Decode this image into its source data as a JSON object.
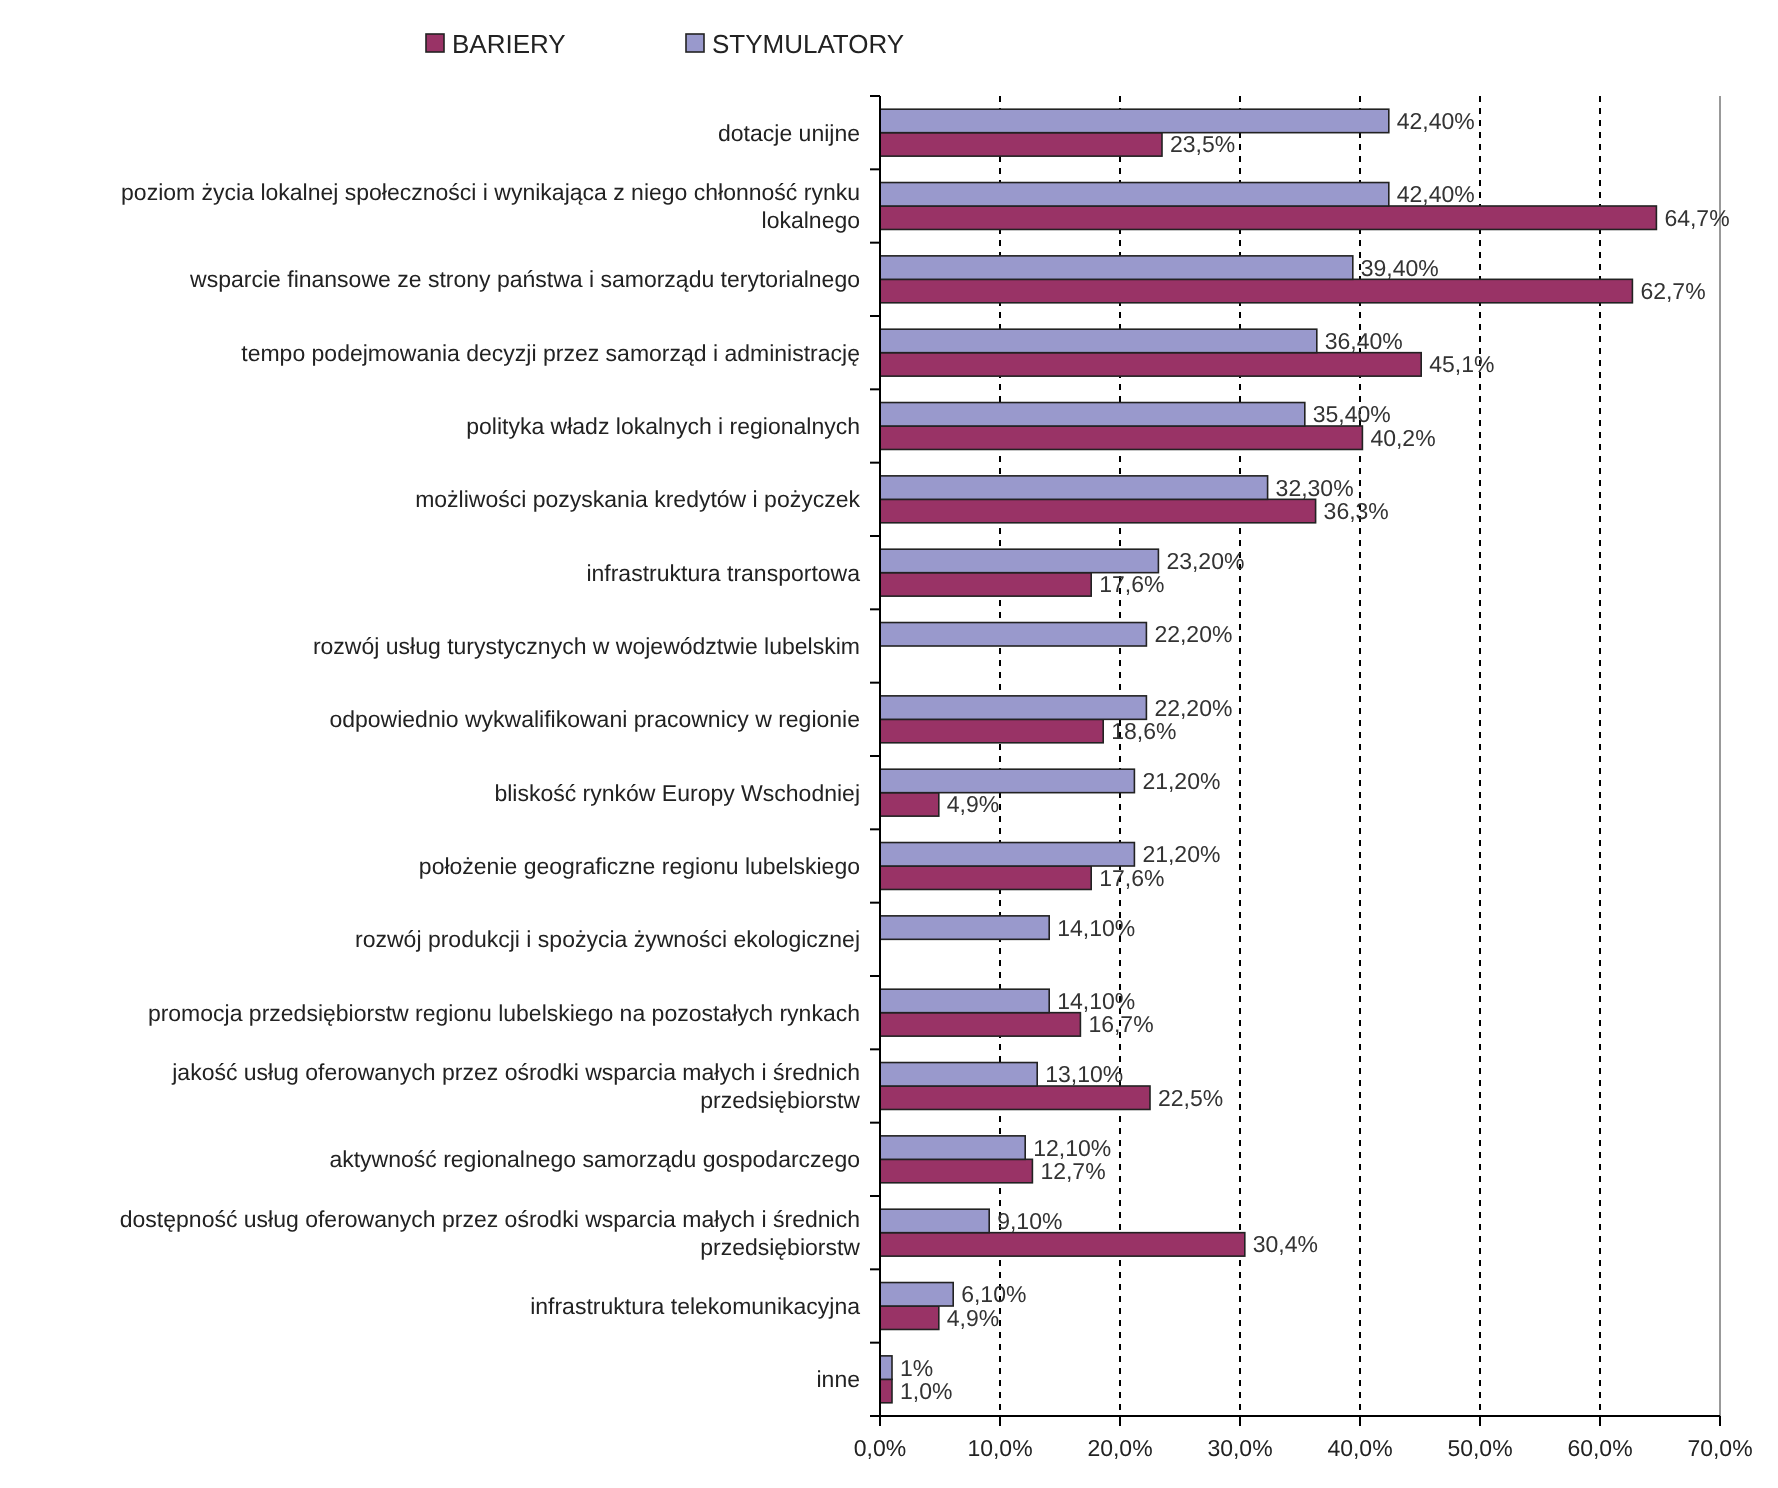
{
  "chart_data": {
    "type": "bar",
    "orientation": "horizontal",
    "categories": [
      "dotacje unijne",
      "poziom życia lokalnej społeczności i wynikająca z niego chłonność rynku lokalnego",
      "wsparcie finansowe ze strony państwa i samorządu terytorialnego",
      "tempo podejmowania decyzji przez samorząd i administrację",
      "polityka władz lokalnych i regionalnych",
      "możliwości pozyskania kredytów i pożyczek",
      "infrastruktura transportowa",
      "rozwój usług turystycznych w województwie lubelskim",
      "odpowiednio wykwalifikowani pracownicy w regionie",
      "bliskość rynków Europy Wschodniej",
      "położenie geograficzne regionu lubelskiego",
      "rozwój produkcji i spożycia żywności ekologicznej",
      "promocja przedsiębiorstw regionu lubelskiego na pozostałych rynkach",
      "jakość usług oferowanych przez ośrodki wsparcia małych i średnich przedsiębiorstw",
      "aktywność regionalnego samorządu gospodarczego",
      "dostępność usług oferowanych przez ośrodki wsparcia małych i średnich przedsiębiorstw",
      "infrastruktura telekomunikacyjna",
      "inne"
    ],
    "series": [
      {
        "name": "BARIERY",
        "color": "#993366",
        "values": [
          23.5,
          64.7,
          62.7,
          45.1,
          40.2,
          36.3,
          17.6,
          null,
          18.6,
          4.9,
          17.6,
          null,
          16.7,
          22.5,
          12.7,
          30.4,
          4.9,
          1.0
        ],
        "value_labels": [
          "23,5%",
          "64,7%",
          "62,7%",
          "45,1%",
          "40,2%",
          "36,3%",
          "17,6%",
          null,
          "18,6%",
          "4,9%",
          "17,6%",
          null,
          "16,7%",
          "22,5%",
          "12,7%",
          "30,4%",
          "4,9%",
          "1,0%"
        ]
      },
      {
        "name": "STYMULATORY",
        "color": "#9999cc",
        "values": [
          42.4,
          42.4,
          39.4,
          36.4,
          35.4,
          32.3,
          23.2,
          22.2,
          22.2,
          21.2,
          21.2,
          14.1,
          14.1,
          13.1,
          12.1,
          9.1,
          6.1,
          1
        ],
        "value_labels": [
          "42,40%",
          "42,40%",
          "39,40%",
          "36,40%",
          "35,40%",
          "32,30%",
          "23,20%",
          "22,20%",
          "22,20%",
          "21,20%",
          "21,20%",
          "14,10%",
          "14,10%",
          "13,10%",
          "12,10%",
          "9,10%",
          "6,10%",
          "1%"
        ]
      }
    ],
    "xlim": [
      0,
      70
    ],
    "xticks": [
      {
        "value": 0,
        "label": "0,0%"
      },
      {
        "value": 10,
        "label": "10,0%"
      },
      {
        "value": 20,
        "label": "20,0%"
      },
      {
        "value": 30,
        "label": "30,0%"
      },
      {
        "value": 40,
        "label": "40,0%"
      },
      {
        "value": 50,
        "label": "50,0%"
      },
      {
        "value": 60,
        "label": "60,0%"
      },
      {
        "value": 70,
        "label": "70,0%"
      }
    ],
    "grid": "x",
    "legend": "top left"
  }
}
